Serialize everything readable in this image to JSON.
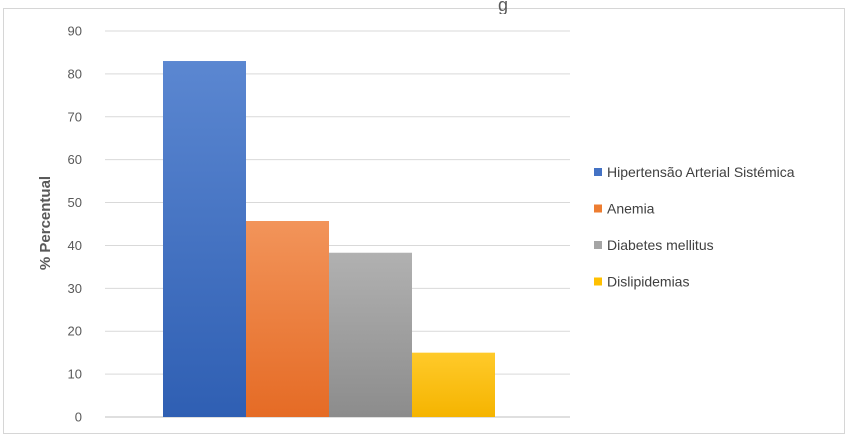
{
  "chart_data": {
    "type": "bar",
    "title": "",
    "title_fragment": "g",
    "xlabel": "",
    "ylabel": "% Percentual",
    "ylim": [
      0,
      90
    ],
    "yticks": [
      0,
      10,
      20,
      30,
      40,
      50,
      60,
      70,
      80,
      90
    ],
    "grid": true,
    "legend_position": "right",
    "series": [
      {
        "name": "Hipertensão Arterial Sistémica",
        "value": 83,
        "color": "#4472c4"
      },
      {
        "name": "Anemia",
        "value": 45.7,
        "color": "#ed7d31"
      },
      {
        "name": "Diabetes mellitus",
        "value": 38.3,
        "color": "#a5a5a5"
      },
      {
        "name": "Dislipidemias",
        "value": 15,
        "color": "#ffc000"
      }
    ]
  }
}
